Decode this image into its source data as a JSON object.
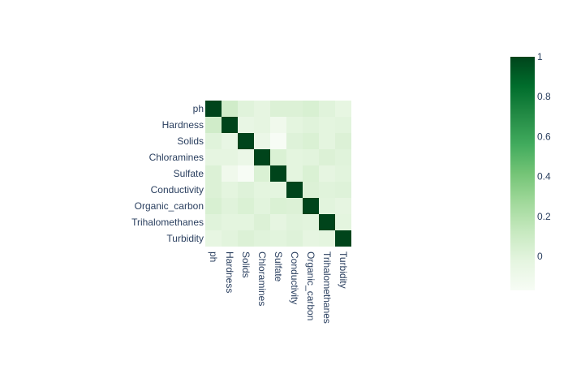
{
  "chart_data": {
    "type": "heatmap",
    "title": "",
    "xlabel": "",
    "ylabel": "",
    "variables": [
      "ph",
      "Hardness",
      "Solids",
      "Chloramines",
      "Sulfate",
      "Conductivity",
      "Organic_carbon",
      "Trihalomethanes",
      "Turbidity"
    ],
    "matrix": [
      [
        1.0,
        0.08,
        0.0,
        -0.03,
        0.02,
        0.02,
        0.04,
        0.0,
        -0.04
      ],
      [
        0.08,
        1.0,
        -0.05,
        -0.03,
        -0.11,
        -0.02,
        0.0,
        -0.02,
        -0.01
      ],
      [
        0.0,
        -0.05,
        1.0,
        -0.07,
        -0.17,
        0.01,
        0.03,
        -0.02,
        0.02
      ],
      [
        -0.03,
        -0.03,
        -0.07,
        1.0,
        0.03,
        -0.02,
        -0.01,
        0.02,
        0.0
      ],
      [
        0.02,
        -0.11,
        -0.17,
        0.03,
        1.0,
        -0.02,
        0.03,
        -0.03,
        -0.01
      ],
      [
        0.02,
        -0.02,
        0.01,
        -0.02,
        -0.02,
        1.0,
        0.02,
        0.0,
        0.01
      ],
      [
        0.04,
        0.0,
        0.03,
        -0.01,
        0.03,
        0.02,
        1.0,
        -0.01,
        -0.03
      ],
      [
        0.0,
        -0.02,
        -0.02,
        0.02,
        -0.03,
        0.0,
        -0.01,
        1.0,
        -0.02
      ],
      [
        -0.04,
        -0.01,
        0.02,
        0.0,
        -0.01,
        0.01,
        -0.03,
        -0.02,
        1.0
      ]
    ],
    "zmin": -0.17,
    "zmax": 1.0,
    "colorscale": "Greens",
    "colorbar_ticks": [
      0,
      0.2,
      0.4,
      0.6,
      0.8,
      1
    ]
  }
}
